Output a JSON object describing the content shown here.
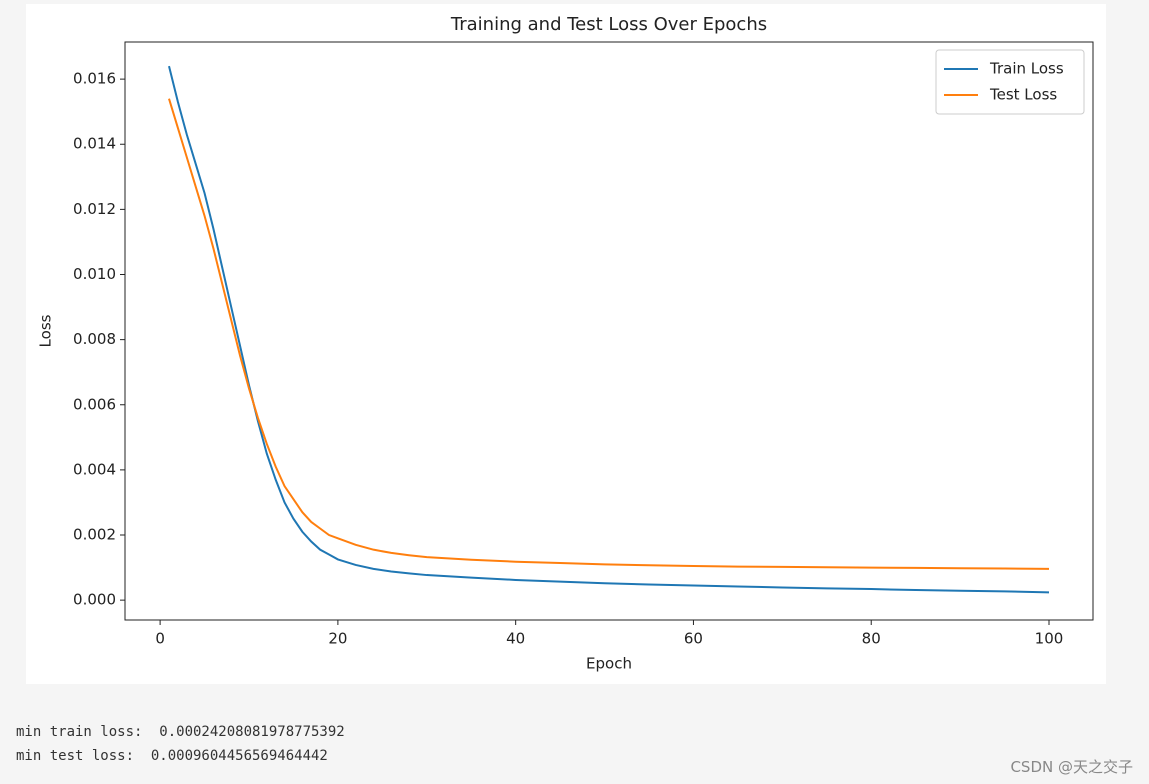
{
  "chart_data": {
    "type": "line",
    "title": "Training and Test Loss Over Epochs",
    "x_label": "Epoch",
    "y_label": "Loss",
    "x": [
      1,
      2,
      3,
      4,
      5,
      6,
      7,
      8,
      9,
      10,
      11,
      12,
      13,
      14,
      15,
      16,
      17,
      18,
      19,
      20,
      22,
      24,
      26,
      28,
      30,
      35,
      40,
      45,
      50,
      55,
      60,
      65,
      70,
      75,
      80,
      85,
      90,
      95,
      100
    ],
    "series": [
      {
        "name": "Train Loss",
        "color": "#1f77b4",
        "values": [
          0.0164,
          0.0153,
          0.0143,
          0.0134,
          0.0125,
          0.0114,
          0.0102,
          0.009,
          0.0078,
          0.0066,
          0.0055,
          0.0045,
          0.0037,
          0.003,
          0.0025,
          0.0021,
          0.0018,
          0.00155,
          0.0014,
          0.00125,
          0.00108,
          0.00096,
          0.00088,
          0.00082,
          0.00077,
          0.00069,
          0.00062,
          0.00057,
          0.00052,
          0.00048,
          0.00045,
          0.00042,
          0.00039,
          0.00036,
          0.00034,
          0.00031,
          0.00029,
          0.00027,
          0.00024
        ]
      },
      {
        "name": "Test Loss",
        "color": "#ff7f0e",
        "values": [
          0.0154,
          0.0145,
          0.0136,
          0.0127,
          0.0118,
          0.0108,
          0.0097,
          0.0086,
          0.0075,
          0.0065,
          0.0056,
          0.0048,
          0.0041,
          0.0035,
          0.0031,
          0.0027,
          0.0024,
          0.0022,
          0.002,
          0.0019,
          0.0017,
          0.00155,
          0.00145,
          0.00138,
          0.00132,
          0.00124,
          0.00118,
          0.00114,
          0.0011,
          0.00107,
          0.00105,
          0.00103,
          0.00102,
          0.00101,
          0.001,
          0.00099,
          0.00098,
          0.00097,
          0.00096
        ]
      }
    ],
    "xlim": [
      -3.95,
      104.95
    ],
    "xticks": [
      0,
      20,
      40,
      60,
      80,
      100
    ],
    "ylim": [
      -0.00061,
      0.01714
    ],
    "yticks": [
      {
        "value": 0,
        "label": "0.000"
      },
      {
        "value": 0.002,
        "label": "0.002"
      },
      {
        "value": 0.004,
        "label": "0.004"
      },
      {
        "value": 0.006,
        "label": "0.006"
      },
      {
        "value": 0.008,
        "label": "0.008"
      },
      {
        "value": 0.01,
        "label": "0.010"
      },
      {
        "value": 0.012,
        "label": "0.012"
      },
      {
        "value": 0.014,
        "label": "0.014"
      },
      {
        "value": 0.016,
        "label": "0.016"
      }
    ],
    "legend": "upper right",
    "grid": false
  },
  "output": {
    "lines": [
      "min train loss:  0.00024208081978775392",
      "min test loss:  0.0009604456569464442"
    ]
  },
  "watermark": "CSDN @天之交子"
}
